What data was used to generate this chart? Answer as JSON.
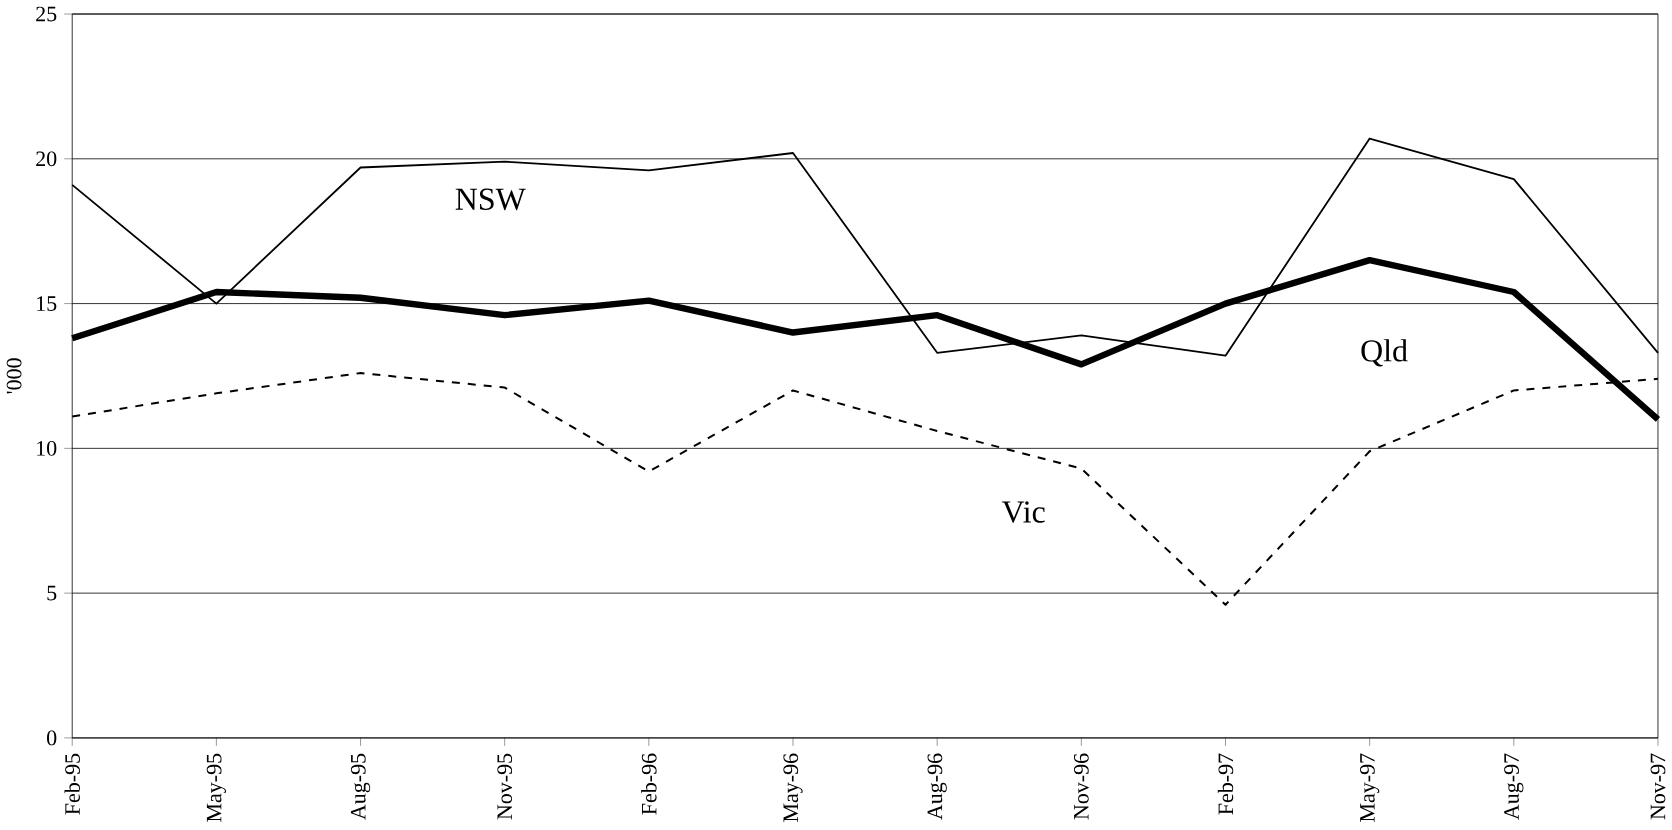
{
  "chart_data": {
    "type": "line",
    "ylabel": "'000",
    "categories": [
      "Feb-95",
      "May-95",
      "Aug-95",
      "Nov-95",
      "Feb-96",
      "May-96",
      "Aug-96",
      "Nov-96",
      "Feb-97",
      "May-97",
      "Aug-97",
      "Nov-97"
    ],
    "series": [
      {
        "name": "NSW",
        "color": "#000000",
        "line_style": "solid",
        "values": [
          19.1,
          15.0,
          19.7,
          19.9,
          19.6,
          20.2,
          13.3,
          13.9,
          13.2,
          20.7,
          19.3,
          13.3
        ]
      },
      {
        "name": "Qld",
        "color": "#000000",
        "line_style": "solid",
        "values": [
          13.8,
          15.4,
          15.2,
          14.6,
          15.1,
          14.0,
          14.6,
          12.9,
          15.0,
          16.5,
          15.4,
          11.0
        ]
      },
      {
        "name": "Vic",
        "color": "#000000",
        "line_style": "dashed",
        "values": [
          11.1,
          11.9,
          12.6,
          12.1,
          9.2,
          12.0,
          10.6,
          9.3,
          4.6,
          9.9,
          12.0,
          12.4
        ]
      }
    ],
    "ylim": [
      0,
      25
    ],
    "yticks": [
      0,
      5,
      10,
      15,
      20,
      25
    ],
    "grid": "y",
    "legend": false,
    "marker": "none"
  }
}
